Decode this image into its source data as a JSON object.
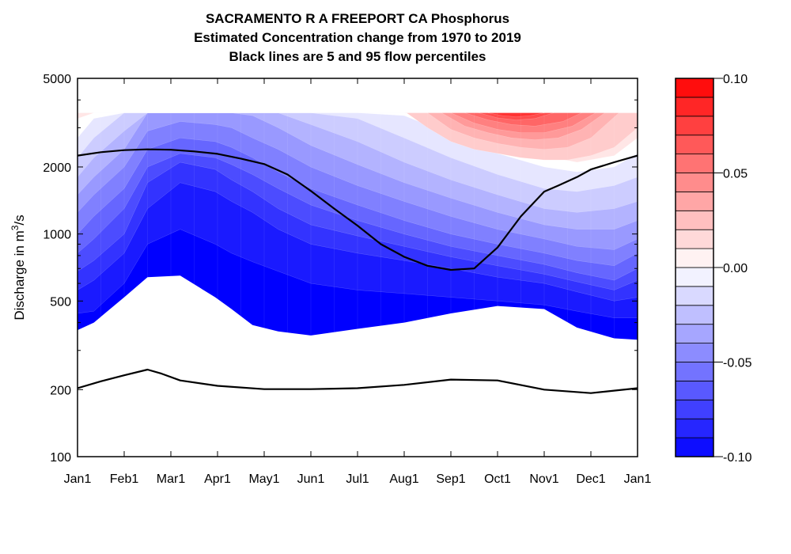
{
  "chart_data": {
    "type": "heatmap",
    "title": "SACRAMENTO R A FREEPORT CA  Phosphorus",
    "subtitle": "Estimated Concentration change from 1970 to 2019",
    "subtitle2": "Black lines are 5 and 95 flow percentiles",
    "ylabel": "Discharge in m",
    "ylabel_sup": "3",
    "ylabel_tail": "/s",
    "y_scale": "log",
    "ylim": [
      100,
      5000
    ],
    "y_ticks": [
      "100",
      "200",
      "500",
      "1000",
      "2000",
      "5000"
    ],
    "x_ticks": [
      "Jan1",
      "Feb1",
      "Mar1",
      "Apr1",
      "May1",
      "Jun1",
      "Jul1",
      "Aug1",
      "Sep1",
      "Oct1",
      "Nov1",
      "Dec1",
      "Jan1"
    ],
    "colorbar": {
      "range": [
        -0.1,
        0.1
      ],
      "tick_labels": [
        "0.10",
        "0.05",
        "0.00",
        "-0.05",
        "-0.10"
      ],
      "tick_values": [
        0.1,
        0.05,
        0.0,
        -0.05,
        -0.1
      ],
      "negative_color": "#0000ff",
      "positive_color": "#ff0000",
      "levels": 20
    },
    "surface_x_months": [
      0,
      0.35,
      1,
      1.5,
      2.2,
      2.95,
      3.3,
      3.75,
      4.3,
      5,
      6,
      7,
      8,
      9,
      10,
      10.7,
      11.5,
      12
    ],
    "surface_lower_q": [
      370,
      400,
      520,
      640,
      650,
      520,
      460,
      390,
      365,
      350,
      375,
      400,
      440,
      475,
      460,
      380,
      340,
      335
    ],
    "surface_top_q": 3500,
    "contours": [
      {
        "level": -0.09,
        "q": [
          440,
          450,
          600,
          900,
          1050,
          900,
          820,
          750,
          680,
          600,
          560,
          540,
          520,
          500,
          480,
          450,
          420,
          420
        ]
      },
      {
        "level": -0.08,
        "q": [
          560,
          620,
          820,
          1300,
          1700,
          1550,
          1400,
          1250,
          1050,
          900,
          820,
          760,
          700,
          640,
          600,
          550,
          500,
          520
        ]
      },
      {
        "level": -0.07,
        "q": [
          680,
          760,
          1000,
          1700,
          2100,
          1950,
          1750,
          1550,
          1300,
          1100,
          980,
          880,
          790,
          720,
          660,
          610,
          560,
          620
        ]
      },
      {
        "level": -0.06,
        "q": [
          820,
          950,
          1300,
          2000,
          2300,
          2200,
          2050,
          1850,
          1600,
          1350,
          1150,
          1000,
          880,
          800,
          730,
          670,
          620,
          700
        ]
      },
      {
        "level": -0.05,
        "q": [
          1000,
          1200,
          1600,
          2400,
          2700,
          2600,
          2450,
          2200,
          1900,
          1600,
          1350,
          1150,
          1000,
          900,
          820,
          760,
          720,
          820
        ]
      },
      {
        "level": -0.04,
        "q": [
          1250,
          1500,
          2000,
          2900,
          3200,
          3100,
          3000,
          2700,
          2400,
          2000,
          1650,
          1400,
          1200,
          1050,
          950,
          880,
          850,
          950
        ]
      },
      {
        "level": -0.03,
        "q": [
          1500,
          1800,
          2400,
          3500,
          3500,
          3500,
          3500,
          3400,
          3000,
          2500,
          2050,
          1700,
          1450,
          1250,
          1100,
          1050,
          1050,
          1150
        ]
      },
      {
        "level": -0.02,
        "q": [
          1800,
          2200,
          2900,
          3500,
          3500,
          3500,
          3500,
          3500,
          3500,
          3100,
          2600,
          2100,
          1750,
          1500,
          1300,
          1250,
          1300,
          1400
        ]
      },
      {
        "level": -0.01,
        "q": [
          2200,
          2700,
          3500,
          3500,
          3500,
          3500,
          3500,
          3500,
          3500,
          3500,
          3300,
          2700,
          2200,
          1850,
          1600,
          1550,
          1650,
          1800
        ]
      },
      {
        "level": 0.0,
        "q": [
          2700,
          3300,
          3500,
          3500,
          3500,
          3500,
          3500,
          3500,
          3500,
          3500,
          3500,
          3400,
          2800,
          2300,
          2000,
          1900,
          2000,
          2300
        ]
      },
      {
        "level": 0.01,
        "q": [
          3300,
          3500,
          3500,
          3500,
          3500,
          3500,
          3500,
          3500,
          3500,
          3500,
          3500,
          3500,
          3300,
          2700,
          2250,
          2100,
          2250,
          2700
        ]
      }
    ],
    "positive_blob": {
      "rings": [
        {
          "level": 0.02,
          "x": [
            7.05,
            7.5,
            8,
            8.5,
            9,
            9.5,
            10,
            10.5,
            11,
            11.5,
            12
          ],
          "q": [
            3500,
            3000,
            2600,
            2400,
            2300,
            2200,
            2150,
            2150,
            2250,
            2450,
            3000
          ]
        },
        {
          "level": 0.03,
          "x": [
            7.5,
            8,
            8.5,
            9,
            9.5,
            10,
            10.5,
            11,
            11.6
          ],
          "q": [
            3500,
            2950,
            2700,
            2550,
            2450,
            2400,
            2450,
            2700,
            3500
          ]
        },
        {
          "level": 0.04,
          "x": [
            7.8,
            8.3,
            8.8,
            9.3,
            9.8,
            10.3,
            10.8,
            11.3
          ],
          "q": [
            3500,
            3050,
            2850,
            2700,
            2650,
            2700,
            2950,
            3500
          ]
        },
        {
          "level": 0.05,
          "x": [
            8.0,
            8.5,
            9.0,
            9.5,
            10.0,
            10.6,
            11.1
          ],
          "q": [
            3500,
            3150,
            2950,
            2850,
            2850,
            3050,
            3500
          ]
        },
        {
          "level": 0.06,
          "x": [
            8.3,
            8.8,
            9.3,
            9.8,
            10.4,
            10.8
          ],
          "q": [
            3500,
            3250,
            3100,
            3050,
            3200,
            3500
          ]
        },
        {
          "level": 0.07,
          "x": [
            8.6,
            9.0,
            9.4,
            9.8,
            10.2
          ],
          "q": [
            3500,
            3320,
            3250,
            3300,
            3500
          ]
        },
        {
          "level": 0.08,
          "x": [
            8.8,
            9.1,
            9.4,
            9.7,
            10.0
          ],
          "q": [
            3500,
            3400,
            3360,
            3400,
            3500
          ]
        }
      ]
    },
    "series": [
      {
        "name": "95",
        "x": [
          0,
          0.5,
          1,
          1.5,
          2,
          2.5,
          3,
          3.5,
          4,
          4.5,
          5,
          5.5,
          6,
          6.5,
          7,
          7.5,
          8,
          8.5,
          9,
          9.5,
          10,
          10.3,
          10.7,
          11,
          11.5,
          12
        ],
        "q": [
          2250,
          2330,
          2380,
          2400,
          2390,
          2350,
          2290,
          2180,
          2060,
          1850,
          1560,
          1300,
          1090,
          900,
          790,
          720,
          690,
          700,
          870,
          1200,
          1550,
          1650,
          1800,
          1950,
          2100,
          2250
        ]
      },
      {
        "name": "5",
        "x": [
          0,
          0.5,
          1,
          1.5,
          1.8,
          2.2,
          3,
          4,
          5,
          5.5,
          6,
          7,
          8,
          9,
          10,
          11,
          12
        ],
        "q": [
          203,
          218,
          232,
          246,
          236,
          220,
          208,
          201,
          201,
          202,
          203,
          210,
          222,
          220,
          200,
          193,
          203
        ]
      }
    ]
  }
}
